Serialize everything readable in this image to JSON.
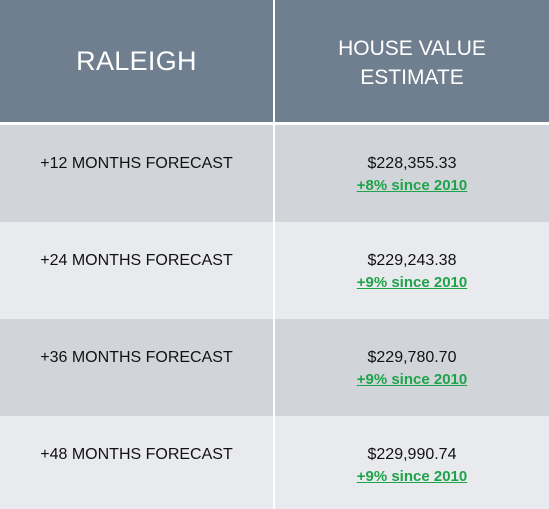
{
  "header": {
    "city": "RALEIGH",
    "value_column": "HOUSE VALUE\nESTIMATE"
  },
  "rows": [
    {
      "label": "+12 MONTHS FORECAST",
      "value": "$228,355.33",
      "change": "+8% since 2010"
    },
    {
      "label": "+24 MONTHS FORECAST",
      "value": "$229,243.38",
      "change": "+9% since 2010"
    },
    {
      "label": "+36 MONTHS FORECAST",
      "value": "$229,780.70",
      "change": "+9% since 2010"
    },
    {
      "label": "+48 MONTHS FORECAST",
      "value": "$229,990.74",
      "change": "+9% since 2010"
    }
  ],
  "colors": {
    "header_bg": "#6f7f8f",
    "row_dark": "#d1d5d9",
    "row_light": "#e9eaed",
    "change_green": "#1fa34a"
  }
}
